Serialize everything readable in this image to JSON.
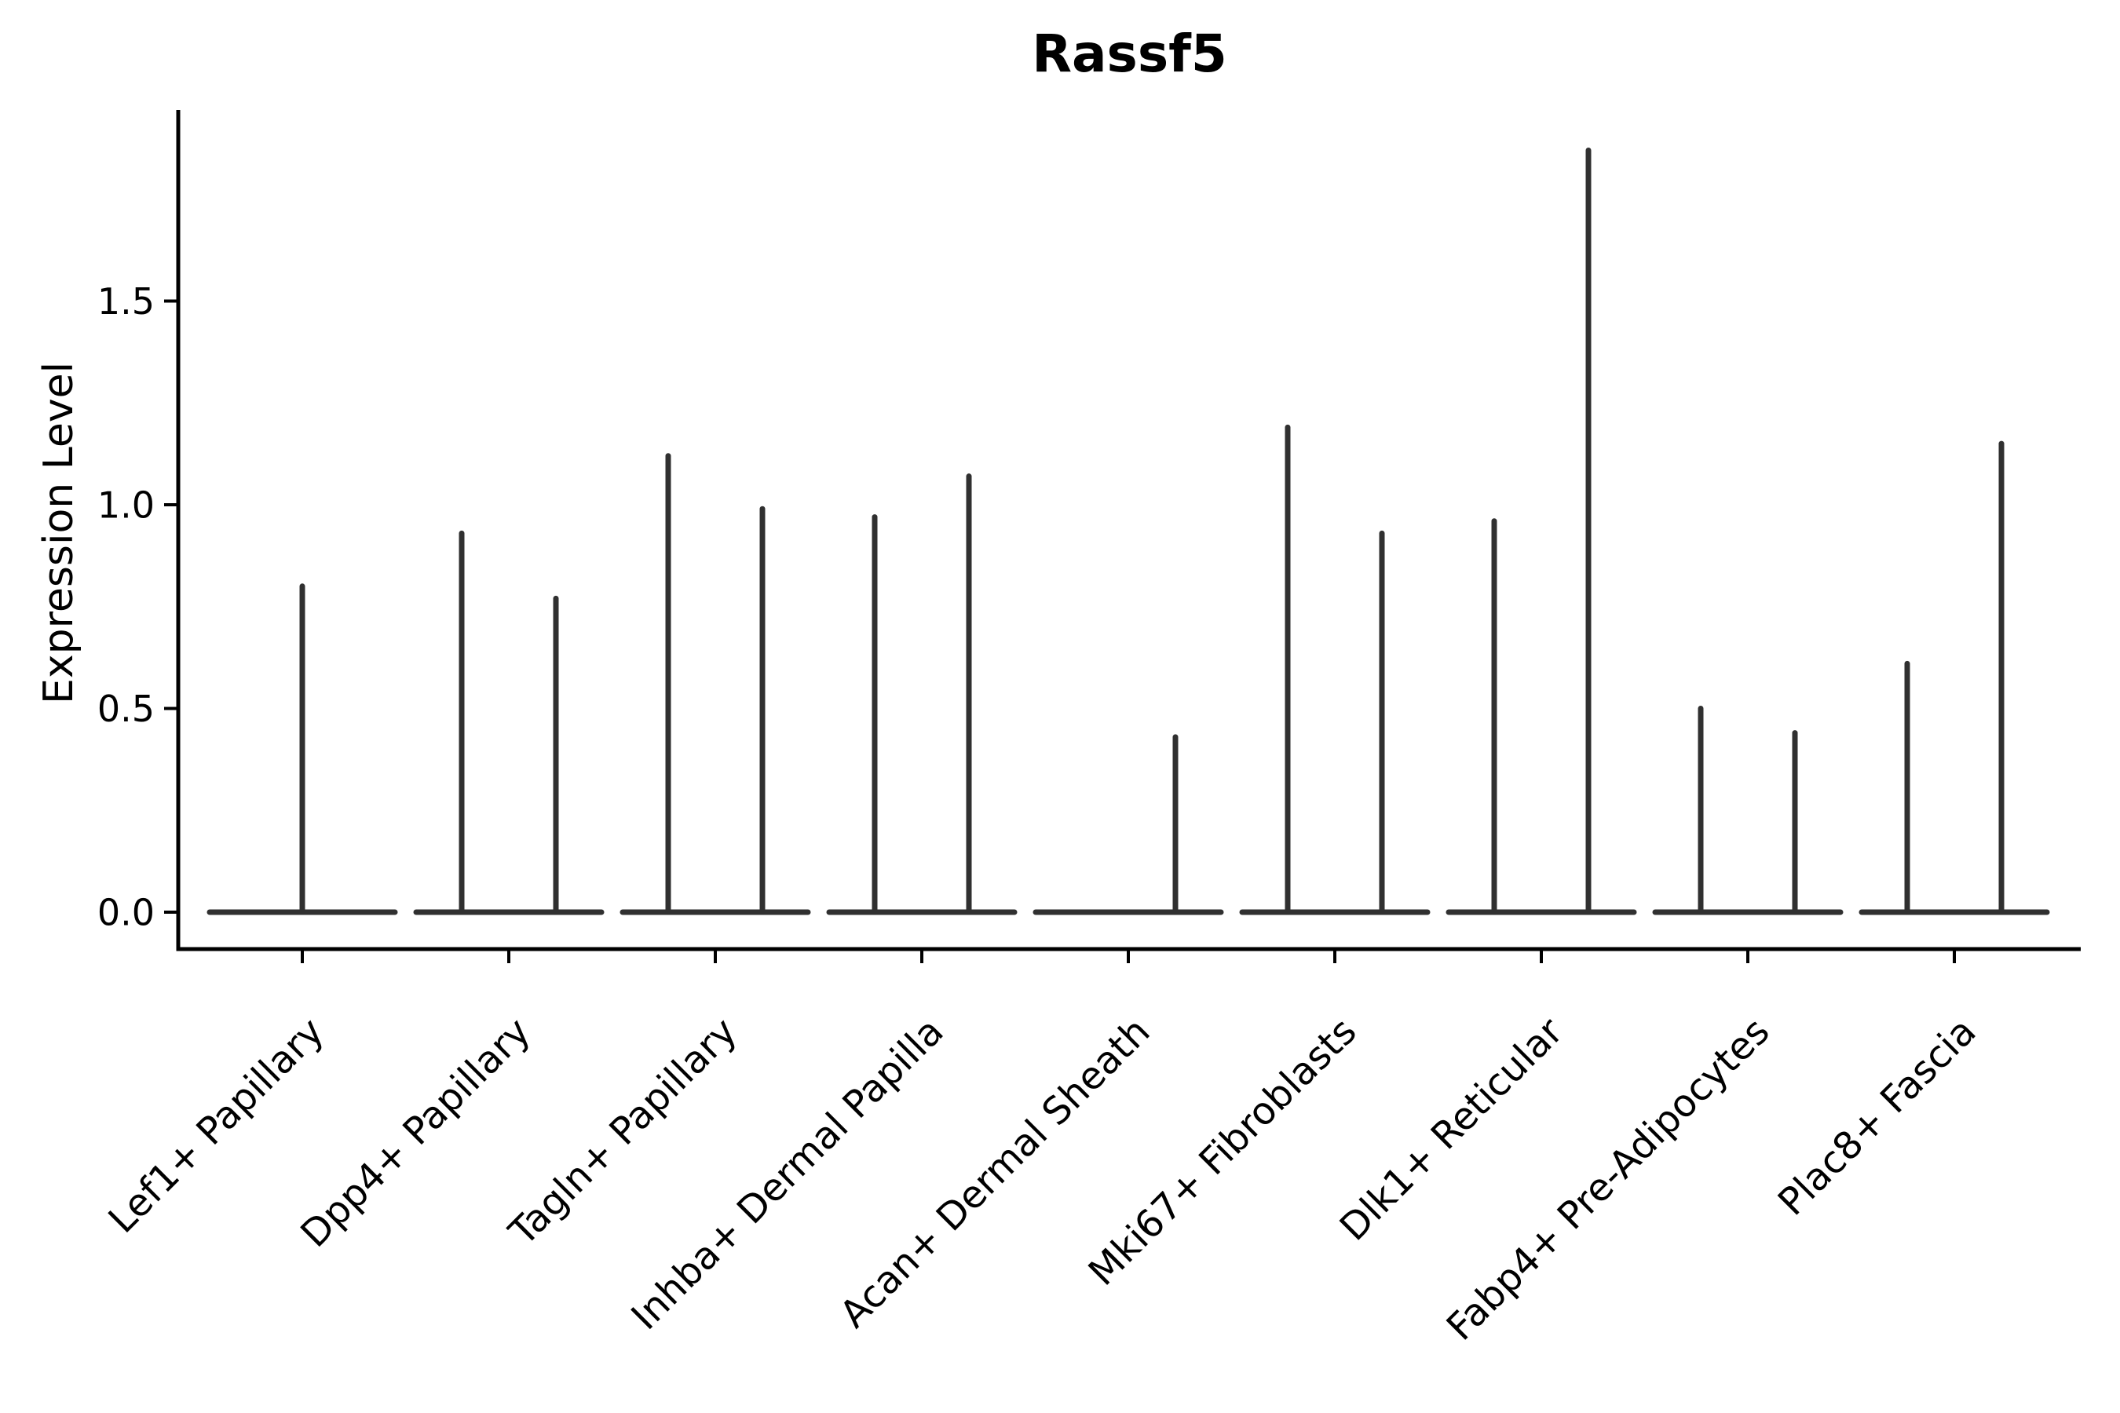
{
  "chart_data": {
    "type": "violin",
    "title": "Rassf5",
    "ylabel": "Expression Level",
    "xlabel": "",
    "ylim": [
      -0.09,
      1.97
    ],
    "grid": false,
    "legend": null,
    "yticks": [
      {
        "value": 0.0,
        "label": "0.0"
      },
      {
        "value": 0.5,
        "label": "0.5"
      },
      {
        "value": 1.0,
        "label": "1.0"
      },
      {
        "value": 1.5,
        "label": "1.5"
      }
    ],
    "categories": [
      "Lef1+ Papillary",
      "Dpp4+ Papillary",
      "Tagln+ Papillary",
      "Inhba+ Dermal Papilla",
      "Acan+ Dermal Sheath",
      "Mki67+ Fibroblasts",
      "Dlk1+ Reticular",
      "Fabp4+ Pre-Adipocytes",
      "Plac8+ Fascia"
    ],
    "violins": [
      {
        "category": "Lef1+ Papillary",
        "spikes": [
          {
            "offset": 0,
            "max": 0.8
          }
        ]
      },
      {
        "category": "Dpp4+ Papillary",
        "spikes": [
          {
            "offset": -60,
            "max": 0.93
          },
          {
            "offset": 60,
            "max": 0.77
          }
        ]
      },
      {
        "category": "Tagln+ Papillary",
        "spikes": [
          {
            "offset": -60,
            "max": 1.12
          },
          {
            "offset": 60,
            "max": 0.99
          }
        ]
      },
      {
        "category": "Inhba+ Dermal Papilla",
        "spikes": [
          {
            "offset": -60,
            "max": 0.97
          },
          {
            "offset": 60,
            "max": 1.07
          }
        ]
      },
      {
        "category": "Acan+ Dermal Sheath",
        "spikes": [
          {
            "offset": 60,
            "max": 0.43
          }
        ]
      },
      {
        "category": "Mki67+ Fibroblasts",
        "spikes": [
          {
            "offset": -60,
            "max": 1.19
          },
          {
            "offset": 60,
            "max": 0.93
          }
        ]
      },
      {
        "category": "Dlk1+ Reticular",
        "spikes": [
          {
            "offset": -60,
            "max": 0.96
          },
          {
            "offset": 60,
            "max": 1.87
          }
        ]
      },
      {
        "category": "Fabp4+ Pre-Adipocytes",
        "spikes": [
          {
            "offset": -60,
            "max": 0.5
          },
          {
            "offset": 60,
            "max": 0.44
          }
        ]
      },
      {
        "category": "Plac8+ Fascia",
        "spikes": [
          {
            "offset": -60,
            "max": 0.61
          },
          {
            "offset": 60,
            "max": 1.15
          }
        ]
      }
    ],
    "colors": {
      "violin": "#303030",
      "axis": "#000000",
      "text": "#000000"
    }
  }
}
